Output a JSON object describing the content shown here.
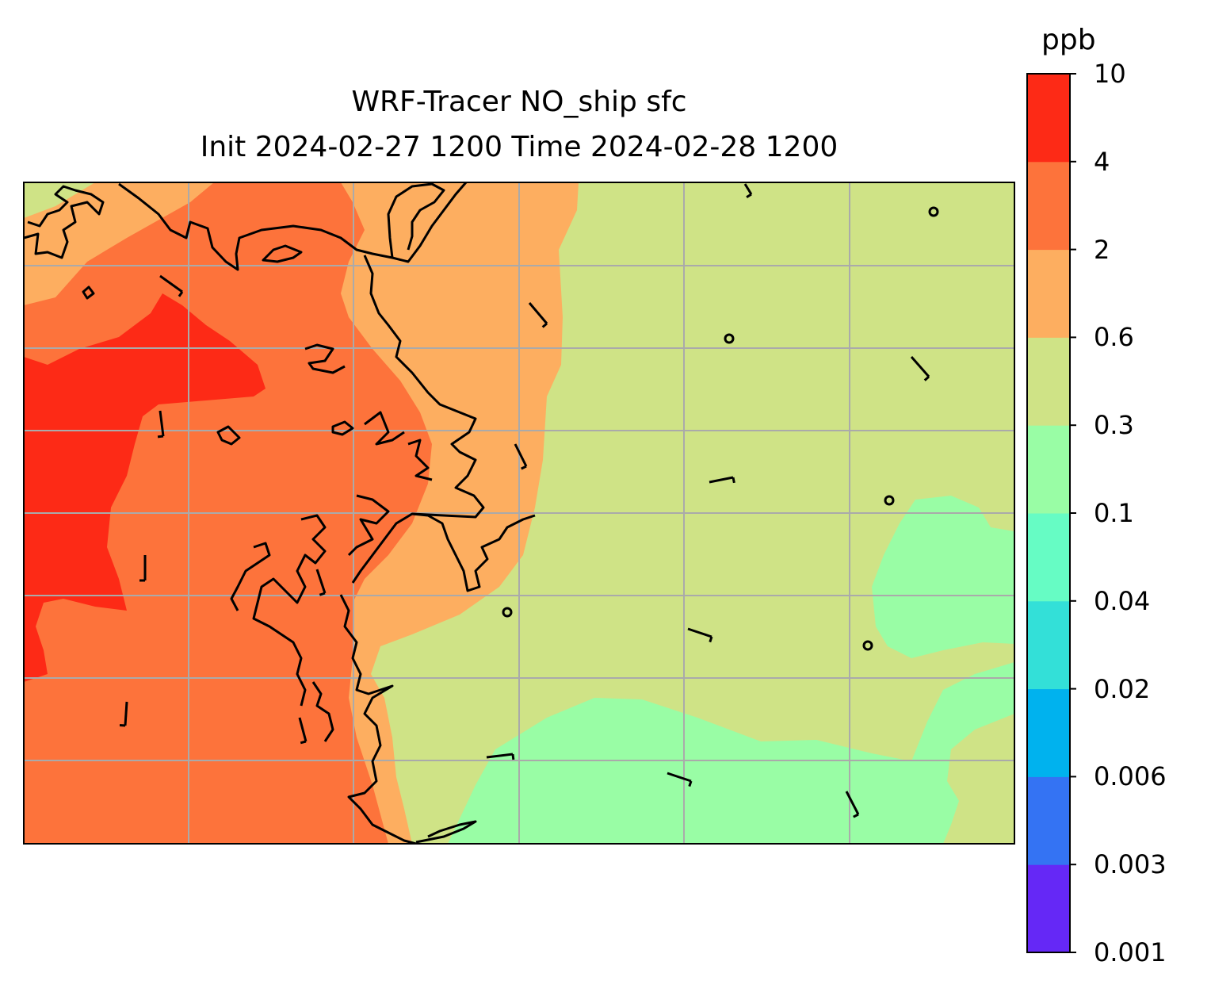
{
  "title": {
    "line1": "WRF-Tracer NO_ship sfc",
    "line2": "Init 2024-02-27 1200 Time 2024-02-28 1200"
  },
  "colorbar": {
    "unit": "ppb",
    "levels": [
      "0.001",
      "0.003",
      "0.006",
      "0.02",
      "0.04",
      "0.1",
      "0.3",
      "0.6",
      "2",
      "4",
      "10"
    ],
    "colors": [
      "#6528f6",
      "#3473f3",
      "#00b2ee",
      "#33e0d8",
      "#66fcc4",
      "#99fda5",
      "#cfe386",
      "#fdae60",
      "#fd733b",
      "#fd2a16"
    ]
  },
  "map": {
    "background_color": "#cfe386",
    "gridline_color": "#aaaaaa",
    "coastline_color": "#000000",
    "features": [
      "coastline",
      "gridlines",
      "wind-barbs",
      "calm-wind-circles"
    ]
  },
  "chart_data": {
    "type": "heatmap",
    "title": "WRF-Tracer NO_ship sfc",
    "subtitle": "Init 2024-02-27 1200 Time 2024-02-28 1200",
    "colorbar_label": "ppb",
    "contour_levels": [
      0.001,
      0.003,
      0.006,
      0.02,
      0.04,
      0.1,
      0.3,
      0.6,
      2,
      4,
      10
    ],
    "legend": "right"
  }
}
